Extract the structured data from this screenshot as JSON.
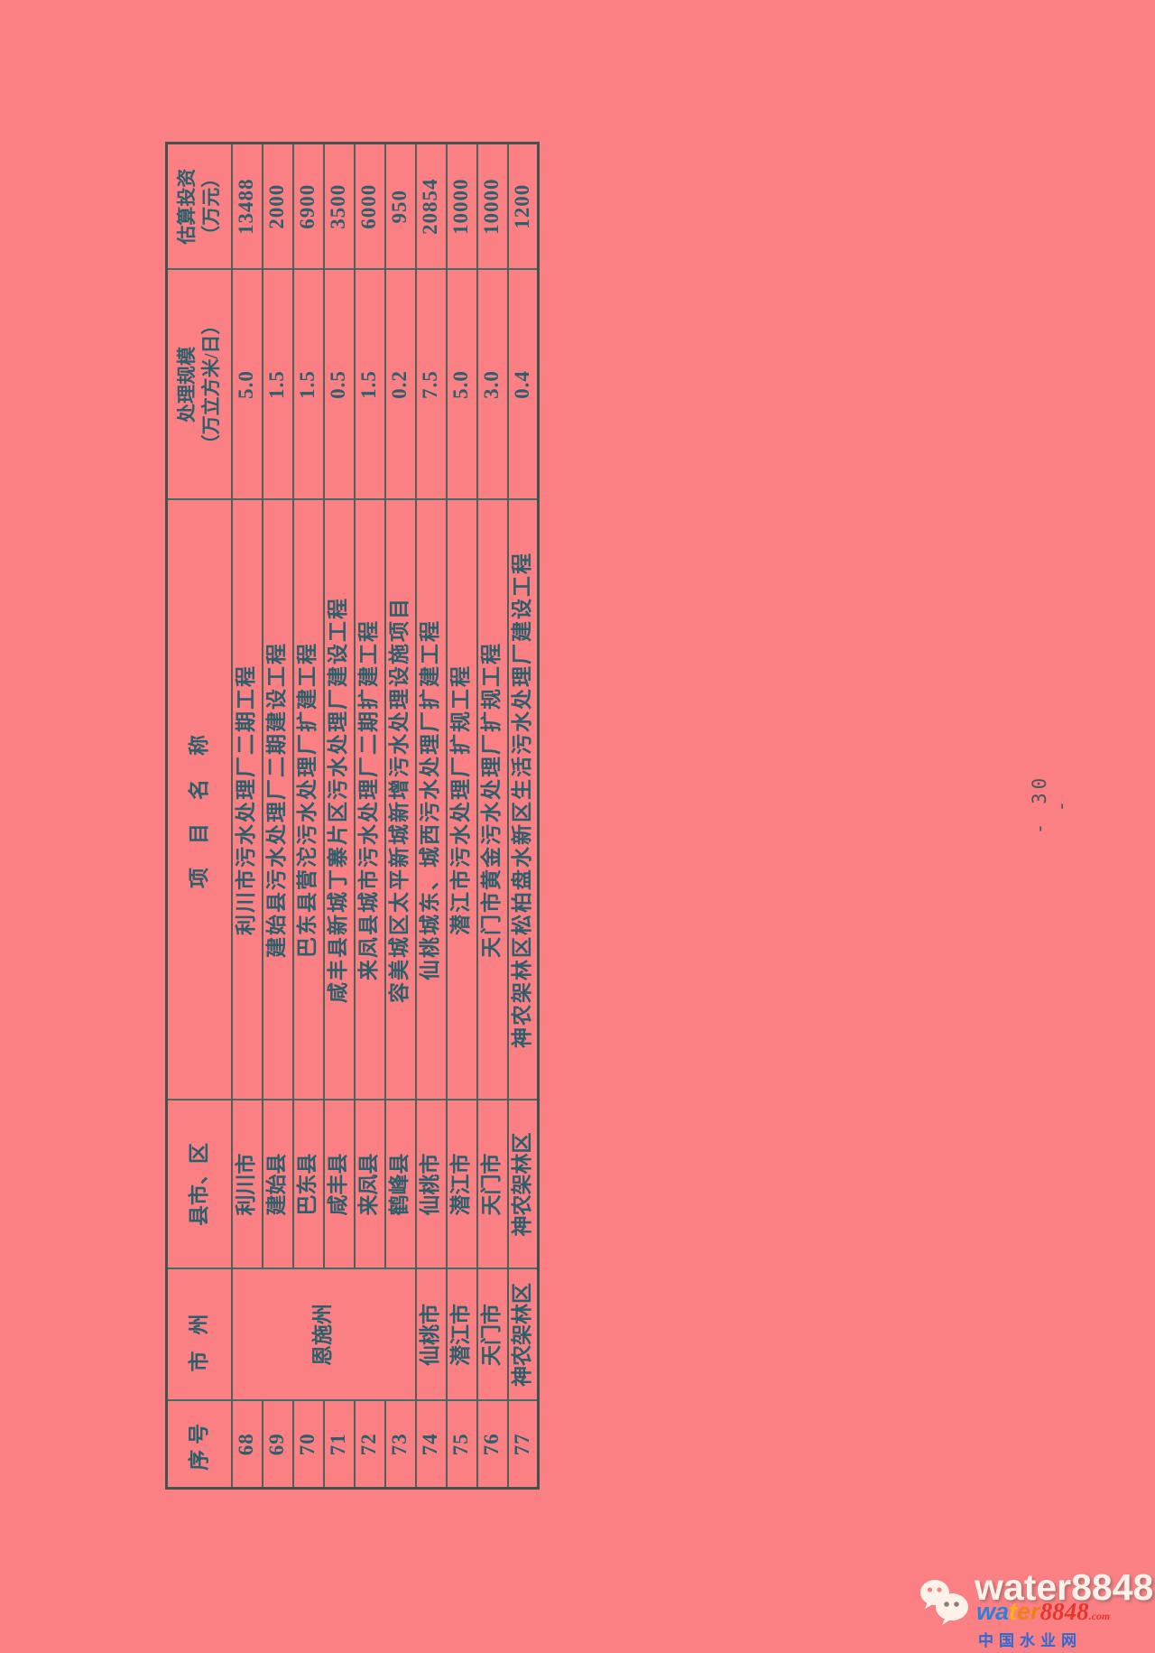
{
  "page": {
    "number_label": "- 30 -"
  },
  "table": {
    "headers": {
      "seq": "序号",
      "prefecture": "市州",
      "county": "县市、区",
      "project": "项目名称",
      "scale_line1": "处理规模",
      "scale_line2": "（万立方米/日）",
      "invest_line1": "估算投资",
      "invest_line2": "（万元）"
    },
    "rows": [
      {
        "seq": "68",
        "prefecture": "恩施州",
        "prefecture_rowspan": 6,
        "county": "利川市",
        "project": "利川市污水处理厂二期工程",
        "scale": "5.0",
        "invest": "13488"
      },
      {
        "seq": "69",
        "county": "建始县",
        "project": "建始县污水处理厂二期建设工程",
        "scale": "1.5",
        "invest": "2000"
      },
      {
        "seq": "70",
        "county": "巴东县",
        "project": "巴东县营沱污水处理厂扩建工程",
        "scale": "1.5",
        "invest": "6900"
      },
      {
        "seq": "71",
        "county": "咸丰县",
        "project": "咸丰县新城丁寨片区污水处理厂建设工程",
        "scale": "0.5",
        "invest": "3500"
      },
      {
        "seq": "72",
        "county": "来凤县",
        "project": "来凤县城市污水处理厂二期扩建工程",
        "scale": "1.5",
        "invest": "6000"
      },
      {
        "seq": "73",
        "county": "鹤峰县",
        "project": "容美城区太平新城新增污水处理设施项目",
        "scale": "0.2",
        "invest": "950"
      },
      {
        "seq": "74",
        "prefecture": "仙桃市",
        "prefecture_rowspan": 1,
        "county": "仙桃市",
        "project": "仙桃城东、城西污水处理厂扩建工程",
        "scale": "7.5",
        "invest": "20854"
      },
      {
        "seq": "75",
        "prefecture": "潜江市",
        "prefecture_rowspan": 1,
        "county": "潜江市",
        "project": "潜江市污水处理厂扩规工程",
        "scale": "5.0",
        "invest": "10000"
      },
      {
        "seq": "76",
        "prefecture": "天门市",
        "prefecture_rowspan": 1,
        "county": "天门市",
        "project": "天门市黄金污水处理厂扩规工程",
        "scale": "3.0",
        "invest": "10000"
      },
      {
        "seq": "77",
        "prefecture": "神农架林区",
        "prefecture_rowspan": 1,
        "county": "神农架林区",
        "project": "神农架林区松柏盘水新区生活污水处理厂建设工程",
        "scale": "0.4",
        "invest": "1200"
      }
    ]
  },
  "watermark": {
    "wechat_name": "water8848",
    "logo_segments": [
      {
        "text": "wa",
        "color": "#2e7fd8",
        "style": "sans"
      },
      {
        "text": "t",
        "color": "#f6b40f",
        "style": "sans"
      },
      {
        "text": "er",
        "color": "#ef7f17",
        "style": "sans"
      },
      {
        "text": "8848",
        "color": "#e8352b",
        "style": "serif"
      },
      {
        "text": ".com",
        "color": "#e8352b",
        "style": "tld"
      }
    ],
    "site_name": "中国水业网"
  },
  "colors": {
    "background": "#fa8084",
    "ink": "#2c5f6b",
    "grid_vertical": "#3f6e68",
    "grid_horizontal": "#565c57",
    "site_blue": "#2a6ad4"
  }
}
